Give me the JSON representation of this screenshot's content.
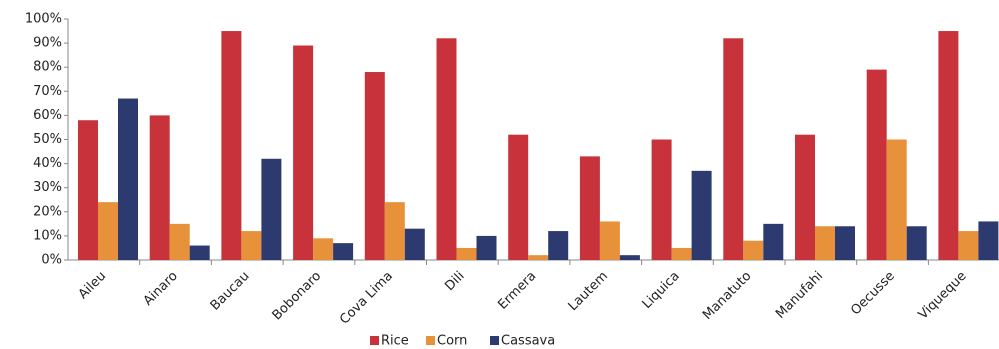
{
  "chart_data": {
    "type": "bar",
    "categories": [
      "Aileu",
      "Ainaro",
      "Baucau",
      "Bobonaro",
      "Cova Lima",
      "Dili",
      "Ermera",
      "Lautem",
      "Liquica",
      "Manatuto",
      "Manufahi",
      "Oecusse",
      "Viqueque"
    ],
    "series": [
      {
        "name": "Rice",
        "color": "#c8333b",
        "values": [
          58,
          60,
          95,
          89,
          78,
          92,
          52,
          43,
          50,
          92,
          52,
          79,
          95
        ]
      },
      {
        "name": "Corn",
        "color": "#e8913b",
        "values": [
          24,
          15,
          12,
          9,
          24,
          5,
          2,
          16,
          5,
          8,
          14,
          50,
          12
        ]
      },
      {
        "name": "Cassava",
        "color": "#2d3a70",
        "values": [
          67,
          6,
          42,
          7,
          13,
          10,
          12,
          2,
          37,
          15,
          14,
          14,
          16
        ]
      }
    ],
    "ylim": [
      0,
      100
    ],
    "yticks": [
      {
        "value": 0,
        "label": "0%"
      },
      {
        "value": 10,
        "label": "10%"
      },
      {
        "value": 20,
        "label": "20%"
      },
      {
        "value": 30,
        "label": "30%"
      },
      {
        "value": 40,
        "label": "40%"
      },
      {
        "value": 50,
        "label": "50%"
      },
      {
        "value": 60,
        "label": "60%"
      },
      {
        "value": 70,
        "label": "70%"
      },
      {
        "value": 80,
        "label": "80%"
      },
      {
        "value": 90,
        "label": "90%"
      },
      {
        "value": 100,
        "label": "100%"
      }
    ],
    "grid": false,
    "legend": "bottom"
  }
}
